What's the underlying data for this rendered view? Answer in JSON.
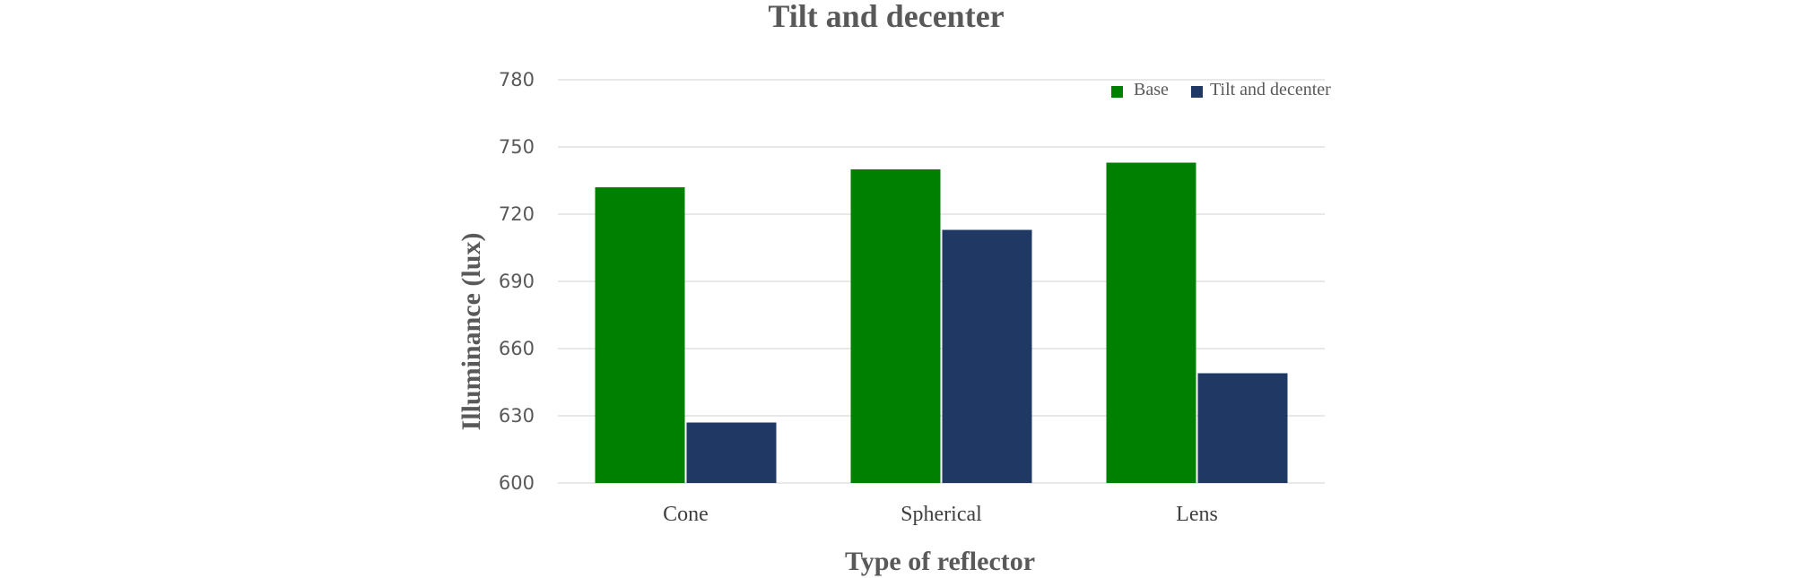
{
  "chart_data": {
    "type": "bar",
    "title": "Tilt and decenter",
    "xlabel": "Type of reflector",
    "ylabel": "Illuminance (lux)",
    "categories": [
      "Cone",
      "Spherical",
      "Lens"
    ],
    "series": [
      {
        "name": "Base",
        "color": "#008000",
        "values": [
          732,
          740,
          743
        ]
      },
      {
        "name": "Tilt and decenter",
        "color": "#203864",
        "values": [
          627,
          713,
          649
        ]
      }
    ],
    "ylim": [
      600,
      780
    ],
    "yticks": [
      "600",
      "630",
      "660",
      "690",
      "720",
      "750",
      "780"
    ],
    "grid": true,
    "legend_position": "top-right"
  }
}
